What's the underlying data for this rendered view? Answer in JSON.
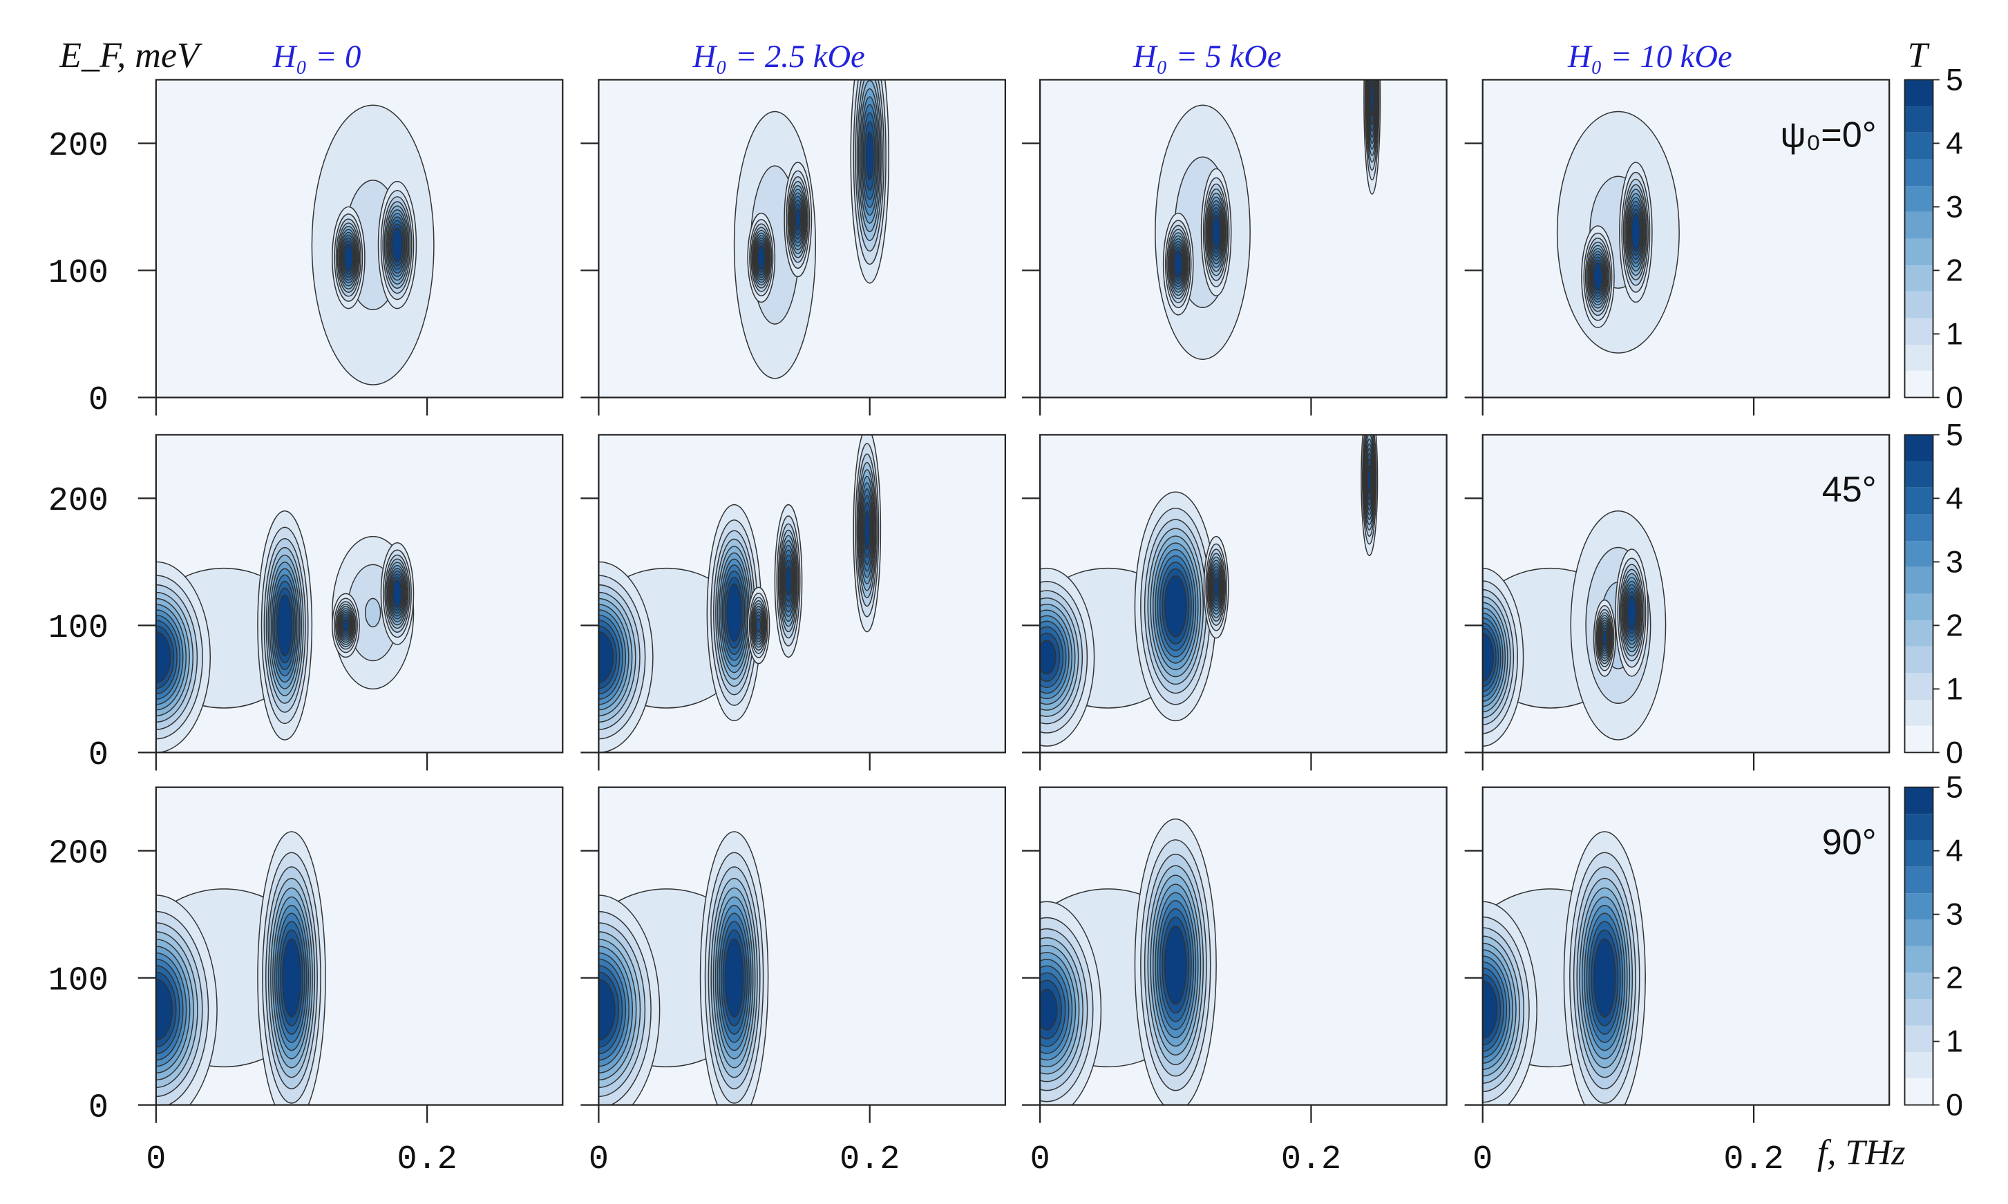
{
  "chart_data": {
    "type": "contour",
    "xlabel": "f, THz",
    "ylabel": "E_F, meV",
    "colorbar_label": "T",
    "xlim": [
      0,
      0.3
    ],
    "ylim": [
      0,
      250
    ],
    "xticks": [
      0,
      0.2
    ],
    "yticks": [
      0,
      100,
      200
    ],
    "colorbar_ticks": [
      0,
      1,
      2,
      3,
      4,
      5
    ],
    "levels": [
      0,
      0.42,
      0.83,
      1.25,
      1.67,
      2.08,
      2.5,
      2.92,
      3.33,
      3.75,
      4.17,
      4.58,
      5
    ],
    "colors": [
      "#f0f5fc",
      "#dde8f5",
      "#cbdcef",
      "#b5cfe8",
      "#9ec3e1",
      "#85b4d9",
      "#6aa3d0",
      "#4e8fc4",
      "#377ab5",
      "#2566a4",
      "#175392",
      "#0b3f7f"
    ],
    "columns": [
      "H₀ = 0",
      "H₀ = 2.5 kOe",
      "H₀ = 5 kOe",
      "H₀ = 10 kOe"
    ],
    "rows": [
      {
        "label": "ψ₀=0°",
        "panels": [
          {
            "blobs": [
              {
                "f": 0.16,
                "E": 120,
                "wf": 0.045,
                "wE": 110,
                "peak": 1
              },
              {
                "f": 0.142,
                "E": 110,
                "wf": 0.012,
                "wE": 40,
                "peak": 5.5
              },
              {
                "f": 0.178,
                "E": 120,
                "wf": 0.014,
                "wE": 50,
                "peak": 5.5
              }
            ]
          },
          {
            "blobs": [
              {
                "f": 0.13,
                "E": 120,
                "wf": 0.03,
                "wE": 105,
                "peak": 1.2
              },
              {
                "f": 0.12,
                "E": 110,
                "wf": 0.01,
                "wE": 35,
                "peak": 5.5
              },
              {
                "f": 0.147,
                "E": 140,
                "wf": 0.01,
                "wE": 45,
                "peak": 5
              },
              {
                "f": 0.2,
                "E": 190,
                "wf": 0.014,
                "wE": 100,
                "peak": 5
              }
            ]
          },
          {
            "blobs": [
              {
                "f": 0.12,
                "E": 130,
                "wf": 0.035,
                "wE": 100,
                "peak": 1.2
              },
              {
                "f": 0.102,
                "E": 105,
                "wf": 0.011,
                "wE": 40,
                "peak": 5.5
              },
              {
                "f": 0.13,
                "E": 130,
                "wf": 0.011,
                "wE": 50,
                "peak": 5.5
              },
              {
                "f": 0.245,
                "E": 235,
                "wf": 0.006,
                "wE": 75,
                "peak": 5
              }
            ]
          },
          {
            "blobs": [
              {
                "f": 0.1,
                "E": 130,
                "wf": 0.045,
                "wE": 95,
                "peak": 1
              },
              {
                "f": 0.085,
                "E": 95,
                "wf": 0.012,
                "wE": 40,
                "peak": 5.5
              },
              {
                "f": 0.113,
                "E": 130,
                "wf": 0.012,
                "wE": 55,
                "peak": 5.5
              }
            ]
          }
        ]
      },
      {
        "label": "45°",
        "panels": [
          {
            "blobs": [
              {
                "f": 0.05,
                "E": 90,
                "wf": 0.06,
                "wE": 55,
                "peak": 0.8
              },
              {
                "f": 0,
                "E": 75,
                "wf": 0.04,
                "wE": 75,
                "peak": 5.5
              },
              {
                "f": 0.095,
                "E": 100,
                "wf": 0.02,
                "wE": 90,
                "peak": 5.5
              },
              {
                "f": 0.16,
                "E": 110,
                "wf": 0.03,
                "wE": 60,
                "peak": 1.3
              },
              {
                "f": 0.14,
                "E": 100,
                "wf": 0.01,
                "wE": 25,
                "peak": 5
              },
              {
                "f": 0.178,
                "E": 125,
                "wf": 0.012,
                "wE": 40,
                "peak": 5.5
              }
            ]
          },
          {
            "blobs": [
              {
                "f": 0.05,
                "E": 90,
                "wf": 0.06,
                "wE": 55,
                "peak": 0.8
              },
              {
                "f": 0,
                "E": 75,
                "wf": 0.04,
                "wE": 75,
                "peak": 5.5
              },
              {
                "f": 0.1,
                "E": 110,
                "wf": 0.02,
                "wE": 85,
                "peak": 5.5
              },
              {
                "f": 0.118,
                "E": 100,
                "wf": 0.008,
                "wE": 30,
                "peak": 4.5
              },
              {
                "f": 0.14,
                "E": 135,
                "wf": 0.01,
                "wE": 60,
                "peak": 5
              },
              {
                "f": 0.198,
                "E": 175,
                "wf": 0.01,
                "wE": 80,
                "peak": 5
              }
            ]
          },
          {
            "blobs": [
              {
                "f": 0.05,
                "E": 90,
                "wf": 0.06,
                "wE": 55,
                "peak": 0.8
              },
              {
                "f": 0.005,
                "E": 75,
                "wf": 0.035,
                "wE": 70,
                "peak": 5
              },
              {
                "f": 0.1,
                "E": 115,
                "wf": 0.03,
                "wE": 90,
                "peak": 5.5
              },
              {
                "f": 0.13,
                "E": 130,
                "wf": 0.009,
                "wE": 40,
                "peak": 5
              },
              {
                "f": 0.243,
                "E": 215,
                "wf": 0.006,
                "wE": 60,
                "peak": 5
              }
            ]
          },
          {
            "blobs": [
              {
                "f": 0.05,
                "E": 90,
                "wf": 0.06,
                "wE": 55,
                "peak": 0.8
              },
              {
                "f": 0,
                "E": 75,
                "wf": 0.03,
                "wE": 70,
                "peak": 5.5
              },
              {
                "f": 0.1,
                "E": 100,
                "wf": 0.035,
                "wE": 90,
                "peak": 1.5
              },
              {
                "f": 0.09,
                "E": 90,
                "wf": 0.008,
                "wE": 30,
                "peak": 5
              },
              {
                "f": 0.11,
                "E": 110,
                "wf": 0.012,
                "wE": 50,
                "peak": 5.5
              }
            ]
          }
        ]
      },
      {
        "label": "90°",
        "panels": [
          {
            "blobs": [
              {
                "f": 0.05,
                "E": 100,
                "wf": 0.07,
                "wE": 70,
                "peak": 0.8
              },
              {
                "f": 0,
                "E": 75,
                "wf": 0.045,
                "wE": 90,
                "peak": 5.5
              },
              {
                "f": 0.1,
                "E": 100,
                "wf": 0.025,
                "wE": 115,
                "peak": 5.5
              }
            ]
          },
          {
            "blobs": [
              {
                "f": 0.05,
                "E": 100,
                "wf": 0.07,
                "wE": 70,
                "peak": 0.8
              },
              {
                "f": 0,
                "E": 75,
                "wf": 0.045,
                "wE": 90,
                "peak": 5.5
              },
              {
                "f": 0.1,
                "E": 100,
                "wf": 0.025,
                "wE": 115,
                "peak": 5.5
              }
            ]
          },
          {
            "blobs": [
              {
                "f": 0.05,
                "E": 100,
                "wf": 0.07,
                "wE": 70,
                "peak": 0.8
              },
              {
                "f": 0.005,
                "E": 75,
                "wf": 0.04,
                "wE": 85,
                "peak": 5
              },
              {
                "f": 0.1,
                "E": 110,
                "wf": 0.03,
                "wE": 115,
                "peak": 5.5
              }
            ]
          },
          {
            "blobs": [
              {
                "f": 0.05,
                "E": 100,
                "wf": 0.07,
                "wE": 70,
                "peak": 0.8
              },
              {
                "f": 0,
                "E": 75,
                "wf": 0.04,
                "wE": 85,
                "peak": 5.5
              },
              {
                "f": 0.09,
                "E": 100,
                "wf": 0.03,
                "wE": 115,
                "peak": 5.5
              }
            ]
          }
        ]
      }
    ]
  }
}
